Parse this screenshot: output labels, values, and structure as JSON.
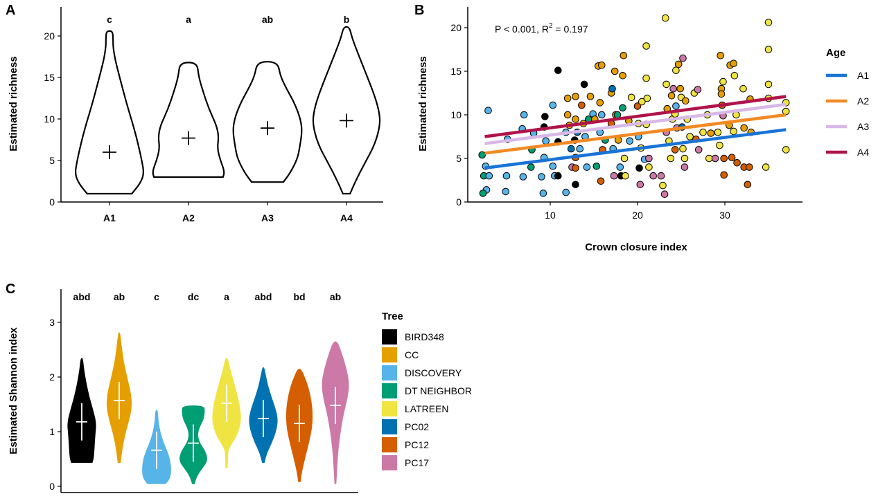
{
  "chart_data": [
    {
      "panel": "A",
      "type": "violin",
      "ylabel": "Estimated richness",
      "xlabel": "",
      "ylim": [
        0,
        22
      ],
      "yticks": [
        0,
        5,
        10,
        15,
        20
      ],
      "categories": [
        "A1",
        "A2",
        "A3",
        "A4"
      ],
      "means": [
        6.0,
        7.7,
        8.9,
        9.8
      ],
      "ranges": [
        [
          1,
          20.6
        ],
        [
          3,
          16.8
        ],
        [
          2.4,
          16.9
        ],
        [
          1,
          21.1
        ]
      ],
      "sig_letters": [
        "c",
        "a",
        "ab",
        "b"
      ]
    },
    {
      "panel": "B",
      "type": "scatter",
      "xlabel": "Crown closure index",
      "ylabel": "Estimated richness",
      "xlim": [
        1,
        38
      ],
      "ylim": [
        0,
        22
      ],
      "xticks": [
        10,
        20,
        30
      ],
      "yticks": [
        0,
        5,
        10,
        15,
        20
      ],
      "annotation_main": "P < 0.001, R",
      "annotation_sup": "2",
      "annotation_tail": " = 0.197",
      "legend_title": "Age",
      "legend_position": "right",
      "lines": [
        {
          "name": "A1",
          "color": "#1a73d6",
          "x": [
            2.5,
            37
          ],
          "y": [
            3.9,
            8.3
          ]
        },
        {
          "name": "A2",
          "color": "#f28a24",
          "x": [
            2.5,
            37
          ],
          "y": [
            5.6,
            10.0
          ]
        },
        {
          "name": "A3",
          "color": "#d8b8e8",
          "x": [
            2.5,
            37
          ],
          "y": [
            6.7,
            11.2
          ]
        },
        {
          "name": "A4",
          "color": "#b0134a",
          "x": [
            2.5,
            37
          ],
          "y": [
            7.5,
            12.1
          ]
        }
      ],
      "points": [
        {
          "tree": "DISCOVERY",
          "x": 2.9,
          "y": 10.5
        },
        {
          "tree": "DT NEIGHBOR",
          "x": 2.2,
          "y": 5.4
        },
        {
          "tree": "DISCOVERY",
          "x": 2.6,
          "y": 4.1
        },
        {
          "tree": "DT NEIGHBOR",
          "x": 2.4,
          "y": 3.0
        },
        {
          "tree": "DISCOVERY",
          "x": 2.7,
          "y": 1.4
        },
        {
          "tree": "DT NEIGHBOR",
          "x": 2.3,
          "y": 1.0
        },
        {
          "tree": "DISCOVERY",
          "x": 3.0,
          "y": 3.0
        },
        {
          "tree": "DISCOVERY",
          "x": 4.9,
          "y": 1.2
        },
        {
          "tree": "DISCOVERY",
          "x": 5.0,
          "y": 3.0
        },
        {
          "tree": "DISCOVERY",
          "x": 5.1,
          "y": 7.2
        },
        {
          "tree": "DISCOVERY",
          "x": 6.9,
          "y": 2.9
        },
        {
          "tree": "DISCOVERY",
          "x": 6.8,
          "y": 8.4
        },
        {
          "tree": "DISCOVERY",
          "x": 7.0,
          "y": 10.0
        },
        {
          "tree": "DT NEIGHBOR",
          "x": 7.8,
          "y": 4.0
        },
        {
          "tree": "DT NEIGHBOR",
          "x": 7.9,
          "y": 6.0
        },
        {
          "tree": "DISCOVERY",
          "x": 8.1,
          "y": 7.9
        },
        {
          "tree": "DISCOVERY",
          "x": 9.0,
          "y": 2.9
        },
        {
          "tree": "DISCOVERY",
          "x": 9.3,
          "y": 5.1
        },
        {
          "tree": "BIRD348",
          "x": 9.4,
          "y": 9.8
        },
        {
          "tree": "BIRD348",
          "x": 9.3,
          "y": 8.6
        },
        {
          "tree": "DISCOVERY",
          "x": 9.5,
          "y": 7.0
        },
        {
          "tree": "DISCOVERY",
          "x": 9.2,
          "y": 1.0
        },
        {
          "tree": "DISCOVERY",
          "x": 10.3,
          "y": 11.1
        },
        {
          "tree": "DISCOVERY",
          "x": 10.3,
          "y": 4.1
        },
        {
          "tree": "DISCOVERY",
          "x": 10.5,
          "y": 3.0
        },
        {
          "tree": "BIRD348",
          "x": 10.9,
          "y": 15.1
        },
        {
          "tree": "BIRD348",
          "x": 10.9,
          "y": 6.9
        },
        {
          "tree": "BIRD348",
          "x": 10.9,
          "y": 3.0
        },
        {
          "tree": "DISCOVERY",
          "x": 11.8,
          "y": 8.0
        },
        {
          "tree": "DISCOVERY",
          "x": 11.8,
          "y": 1.1
        },
        {
          "tree": "CC",
          "x": 12.0,
          "y": 11.9
        },
        {
          "tree": "CC",
          "x": 12.0,
          "y": 10.0
        },
        {
          "tree": "CC",
          "x": 12.2,
          "y": 8.8
        },
        {
          "tree": "PC02",
          "x": 12.4,
          "y": 6.1
        },
        {
          "tree": "PC17",
          "x": 12.5,
          "y": 4.0
        },
        {
          "tree": "CC",
          "x": 12.9,
          "y": 12.1
        },
        {
          "tree": "CC",
          "x": 12.9,
          "y": 9.5
        },
        {
          "tree": "BIRD348",
          "x": 12.8,
          "y": 7.1
        },
        {
          "tree": "PC12",
          "x": 12.9,
          "y": 5.1
        },
        {
          "tree": "PC12",
          "x": 12.9,
          "y": 3.9
        },
        {
          "tree": "BIRD348",
          "x": 12.9,
          "y": 2.0
        },
        {
          "tree": "PC02",
          "x": 13.1,
          "y": 8.0
        },
        {
          "tree": "DISCOVERY",
          "x": 13.4,
          "y": 6.1
        },
        {
          "tree": "PC12",
          "x": 13.6,
          "y": 11.1
        },
        {
          "tree": "CC",
          "x": 13.8,
          "y": 9.0
        },
        {
          "tree": "BIRD348",
          "x": 13.9,
          "y": 13.5
        },
        {
          "tree": "DISCOVERY",
          "x": 14.0,
          "y": 7.5
        },
        {
          "tree": "DISCOVERY",
          "x": 14.2,
          "y": 4.0
        },
        {
          "tree": "DT NEIGHBOR",
          "x": 14.4,
          "y": 9.5
        },
        {
          "tree": "CC",
          "x": 14.6,
          "y": 12.1
        },
        {
          "tree": "DISCOVERY",
          "x": 14.9,
          "y": 10.1
        },
        {
          "tree": "CC",
          "x": 15.1,
          "y": 9.5
        },
        {
          "tree": "DT NEIGHBOR",
          "x": 15.3,
          "y": 4.1
        },
        {
          "tree": "CC",
          "x": 15.5,
          "y": 15.6
        },
        {
          "tree": "CC",
          "x": 15.7,
          "y": 11.4
        },
        {
          "tree": "DISCOVERY",
          "x": 15.7,
          "y": 8.0
        },
        {
          "tree": "PC12",
          "x": 15.8,
          "y": 2.4
        },
        {
          "tree": "CC",
          "x": 15.9,
          "y": 15.7
        },
        {
          "tree": "DISCOVERY",
          "x": 15.9,
          "y": 10.0
        },
        {
          "tree": "PC12",
          "x": 16.0,
          "y": 6.0
        },
        {
          "tree": "DT NEIGHBOR",
          "x": 16.3,
          "y": 7.1
        },
        {
          "tree": "CC",
          "x": 17.0,
          "y": 12.5
        },
        {
          "tree": "PC12",
          "x": 17.0,
          "y": 9.0
        },
        {
          "tree": "PC02",
          "x": 17.1,
          "y": 13.0
        },
        {
          "tree": "DISCOVERY",
          "x": 17.2,
          "y": 6.1
        },
        {
          "tree": "CC",
          "x": 17.4,
          "y": 15.0
        },
        {
          "tree": "PC17",
          "x": 17.3,
          "y": 3.0
        },
        {
          "tree": "CC",
          "x": 17.5,
          "y": 10.0
        },
        {
          "tree": "CC",
          "x": 17.8,
          "y": 7.1
        },
        {
          "tree": "DT NEIGHBOR",
          "x": 17.7,
          "y": 10.0
        },
        {
          "tree": "DISCOVERY",
          "x": 18.0,
          "y": 4.0
        },
        {
          "tree": "BIRD348",
          "x": 18.1,
          "y": 3.0
        },
        {
          "tree": "CC",
          "x": 18.4,
          "y": 16.8
        },
        {
          "tree": "CC",
          "x": 18.3,
          "y": 14.5
        },
        {
          "tree": "DT NEIGHBOR",
          "x": 18.3,
          "y": 10.8
        },
        {
          "tree": "LATREEN",
          "x": 18.5,
          "y": 5.0
        },
        {
          "tree": "LATREEN",
          "x": 18.6,
          "y": 3.0
        },
        {
          "tree": "CC",
          "x": 19.0,
          "y": 9.3
        },
        {
          "tree": "DISCOVERY",
          "x": 19.1,
          "y": 7.0
        },
        {
          "tree": "LATREEN",
          "x": 19.3,
          "y": 12.0
        },
        {
          "tree": "PC12",
          "x": 20.0,
          "y": 11.0
        },
        {
          "tree": "LATREEN",
          "x": 20.1,
          "y": 9.0
        },
        {
          "tree": "DISCOVERY",
          "x": 20.1,
          "y": 7.5
        },
        {
          "tree": "BIRD348",
          "x": 20.2,
          "y": 3.9
        },
        {
          "tree": "PC17",
          "x": 20.3,
          "y": 2.0
        },
        {
          "tree": "LATREEN",
          "x": 20.5,
          "y": 11.5
        },
        {
          "tree": "LATREEN",
          "x": 20.4,
          "y": 6.2
        },
        {
          "tree": "DISCOVERY",
          "x": 20.8,
          "y": 4.9
        },
        {
          "tree": "LATREEN",
          "x": 21.0,
          "y": 17.9
        },
        {
          "tree": "LATREEN",
          "x": 21.0,
          "y": 14.2
        },
        {
          "tree": "LATREEN",
          "x": 21.1,
          "y": 11.9
        },
        {
          "tree": "LATREEN",
          "x": 21.0,
          "y": 8.9
        },
        {
          "tree": "LATREEN",
          "x": 21.3,
          "y": 4.0
        },
        {
          "tree": "PC17",
          "x": 21.3,
          "y": 5.0
        },
        {
          "tree": "PC17",
          "x": 21.8,
          "y": 3.0
        },
        {
          "tree": "LATREEN",
          "x": 22.9,
          "y": 1.9
        },
        {
          "tree": "PC17",
          "x": 22.7,
          "y": 3.0
        },
        {
          "tree": "LATREEN",
          "x": 23.2,
          "y": 21.1
        },
        {
          "tree": "LATREEN",
          "x": 23.3,
          "y": 13.5
        },
        {
          "tree": "CC",
          "x": 23.4,
          "y": 10.7
        },
        {
          "tree": "PC17",
          "x": 23.3,
          "y": 8.0
        },
        {
          "tree": "LATREEN",
          "x": 23.6,
          "y": 7.0
        },
        {
          "tree": "LATREEN",
          "x": 23.8,
          "y": 5.0
        },
        {
          "tree": "PC17",
          "x": 23.1,
          "y": 0.9
        },
        {
          "tree": "CC",
          "x": 23.9,
          "y": 12.2
        },
        {
          "tree": "LATREEN",
          "x": 24.0,
          "y": 9.5
        },
        {
          "tree": "PC17",
          "x": 24.1,
          "y": 13.0
        },
        {
          "tree": "LATREEN",
          "x": 24.4,
          "y": 15.1
        },
        {
          "tree": "LATREEN",
          "x": 24.3,
          "y": 10.1
        },
        {
          "tree": "DISCOVERY",
          "x": 24.4,
          "y": 11.0
        },
        {
          "tree": "PC12",
          "x": 24.3,
          "y": 6.0
        },
        {
          "tree": "PC17",
          "x": 24.5,
          "y": 8.5
        },
        {
          "tree": "CC",
          "x": 24.7,
          "y": 15.8
        },
        {
          "tree": "CC",
          "x": 24.9,
          "y": 13.0
        },
        {
          "tree": "PC17",
          "x": 25.2,
          "y": 16.5
        },
        {
          "tree": "LATREEN",
          "x": 25.0,
          "y": 12.0
        },
        {
          "tree": "PC02",
          "x": 25.1,
          "y": 8.6
        },
        {
          "tree": "LATREEN",
          "x": 25.2,
          "y": 6.1
        },
        {
          "tree": "LATREEN",
          "x": 25.4,
          "y": 5.0
        },
        {
          "tree": "PC17",
          "x": 25.4,
          "y": 4.0
        },
        {
          "tree": "CC",
          "x": 25.5,
          "y": 11.6
        },
        {
          "tree": "LATREEN",
          "x": 25.7,
          "y": 9.5
        },
        {
          "tree": "LATREEN",
          "x": 26.0,
          "y": 7.5
        },
        {
          "tree": "PC12",
          "x": 26.7,
          "y": 7.2
        },
        {
          "tree": "LATREEN",
          "x": 26.5,
          "y": 12.5
        },
        {
          "tree": "PC17",
          "x": 26.9,
          "y": 12.9
        },
        {
          "tree": "PC17",
          "x": 27.0,
          "y": 6.0
        },
        {
          "tree": "LATREEN",
          "x": 27.5,
          "y": 8.0
        },
        {
          "tree": "LATREEN",
          "x": 28.0,
          "y": 10.0
        },
        {
          "tree": "LATREEN",
          "x": 28.2,
          "y": 5.0
        },
        {
          "tree": "CC",
          "x": 28.4,
          "y": 7.9
        },
        {
          "tree": "PC17",
          "x": 28.9,
          "y": 5.0
        },
        {
          "tree": "LATREEN",
          "x": 29.2,
          "y": 8.0
        },
        {
          "tree": "LATREEN",
          "x": 29.4,
          "y": 6.5
        },
        {
          "tree": "CC",
          "x": 29.5,
          "y": 16.8
        },
        {
          "tree": "CC",
          "x": 29.6,
          "y": 13.0
        },
        {
          "tree": "CC",
          "x": 29.6,
          "y": 12.4
        },
        {
          "tree": "PC12",
          "x": 29.7,
          "y": 11.1
        },
        {
          "tree": "LATREEN",
          "x": 29.8,
          "y": 13.8
        },
        {
          "tree": "PC17",
          "x": 29.8,
          "y": 9.9
        },
        {
          "tree": "PC12",
          "x": 29.9,
          "y": 5.0
        },
        {
          "tree": "PC12",
          "x": 29.9,
          "y": 3.1
        },
        {
          "tree": "CC",
          "x": 30.5,
          "y": 8.8
        },
        {
          "tree": "CC",
          "x": 30.6,
          "y": 15.7
        },
        {
          "tree": "PC12",
          "x": 30.8,
          "y": 5.1
        },
        {
          "tree": "CC",
          "x": 31.0,
          "y": 15.9
        },
        {
          "tree": "LATREEN",
          "x": 31.1,
          "y": 14.5
        },
        {
          "tree": "LATREEN",
          "x": 31.3,
          "y": 10.0
        },
        {
          "tree": "LATREEN",
          "x": 31.0,
          "y": 8.1
        },
        {
          "tree": "PC12",
          "x": 31.4,
          "y": 4.5
        },
        {
          "tree": "LATREEN",
          "x": 32.1,
          "y": 13.0
        },
        {
          "tree": "CC",
          "x": 32.2,
          "y": 8.5
        },
        {
          "tree": "PC12",
          "x": 32.2,
          "y": 4.0
        },
        {
          "tree": "PC12",
          "x": 32.8,
          "y": 4.0
        },
        {
          "tree": "PC12",
          "x": 32.6,
          "y": 2.0
        },
        {
          "tree": "CC",
          "x": 32.9,
          "y": 11.8
        },
        {
          "tree": "CC",
          "x": 33.0,
          "y": 8.0
        },
        {
          "tree": "LATREEN",
          "x": 34.7,
          "y": 4.0
        },
        {
          "tree": "LATREEN",
          "x": 35.0,
          "y": 20.6
        },
        {
          "tree": "LATREEN",
          "x": 35.0,
          "y": 17.5
        },
        {
          "tree": "LATREEN",
          "x": 35.0,
          "y": 13.5
        },
        {
          "tree": "LATREEN",
          "x": 35.0,
          "y": 11.9
        },
        {
          "tree": "LATREEN",
          "x": 37.0,
          "y": 11.4
        },
        {
          "tree": "LATREEN",
          "x": 37.0,
          "y": 10.4
        },
        {
          "tree": "LATREEN",
          "x": 37.0,
          "y": 6.0
        }
      ]
    },
    {
      "panel": "C",
      "type": "violin",
      "ylabel": "Estimated Shannon index",
      "ylim": [
        0,
        3.5
      ],
      "yticks": [
        0,
        1,
        2,
        3
      ],
      "categories": [
        "BIRD348",
        "CC",
        "DISCOVERY",
        "DT NEIGHBOR",
        "LATREEN",
        "PC02",
        "PC12",
        "PC17"
      ],
      "colors": [
        "#000000",
        "#e69f00",
        "#56b4e9",
        "#009e73",
        "#f0e442",
        "#0072b2",
        "#d55e00",
        "#cc79a7"
      ],
      "means": [
        1.18,
        1.57,
        0.66,
        0.79,
        1.52,
        1.24,
        1.15,
        1.48
      ],
      "ranges": [
        [
          0.43,
          2.35
        ],
        [
          0.43,
          2.82
        ],
        [
          0.04,
          1.4
        ],
        [
          0.04,
          1.48
        ],
        [
          0.33,
          2.35
        ],
        [
          0.43,
          2.18
        ],
        [
          0.08,
          2.15
        ],
        [
          0.04,
          2.65
        ]
      ],
      "sig_letters": [
        "abd",
        "ab",
        "c",
        "dc",
        "a",
        "abd",
        "bd",
        "ab"
      ],
      "legend_title": "Tree",
      "legend_position": "right"
    }
  ],
  "panels": {
    "a": "A",
    "b": "B",
    "c": "C"
  }
}
